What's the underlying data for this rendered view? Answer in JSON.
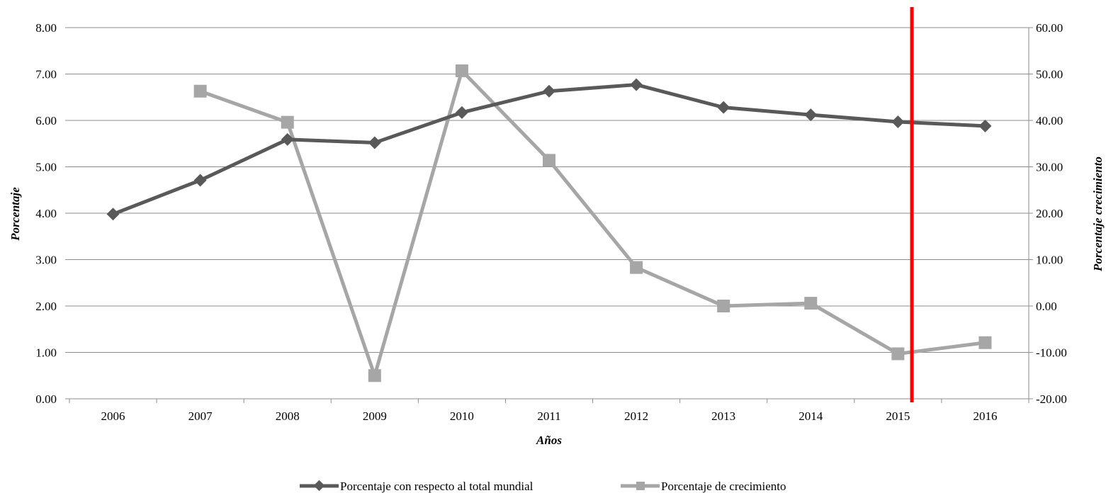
{
  "chart_data": {
    "type": "line",
    "categories": [
      "2006",
      "2007",
      "2008",
      "2009",
      "2010",
      "2011",
      "2012",
      "2013",
      "2014",
      "2015",
      "2016"
    ],
    "xlabel": "Años",
    "ylabel": "Porcentaje",
    "y2label": "Porcentaje crecimiento",
    "ylim": [
      0,
      8
    ],
    "y2lim": [
      -20,
      60
    ],
    "y_ticks": [
      "0.00",
      "1.00",
      "2.00",
      "3.00",
      "4.00",
      "5.00",
      "6.00",
      "7.00",
      "8.00"
    ],
    "y2_ticks": [
      "-20.00",
      "-10.00",
      "0.00",
      "10.00",
      "20.00",
      "30.00",
      "40.00",
      "50.00",
      "60.00"
    ],
    "grid": true,
    "legend_position": "bottom",
    "series": [
      {
        "name": "Porcentaje con respecto al total mundial",
        "axis": "left",
        "marker": "diamond",
        "color": "#595959",
        "values": [
          3.98,
          4.71,
          5.59,
          5.52,
          6.17,
          6.63,
          6.77,
          6.28,
          6.12,
          5.97,
          5.88
        ]
      },
      {
        "name": "Porcentaje de crecimiento",
        "axis": "right",
        "marker": "square",
        "color": "#a6a6a6",
        "values": [
          null,
          46.3,
          39.6,
          -15.0,
          50.7,
          31.4,
          8.3,
          0.0,
          0.6,
          -10.3,
          -7.9
        ]
      }
    ],
    "annotations": [
      {
        "type": "vertical-line",
        "color": "#ff0000",
        "x_position": "between 2015 and 2016"
      }
    ]
  }
}
